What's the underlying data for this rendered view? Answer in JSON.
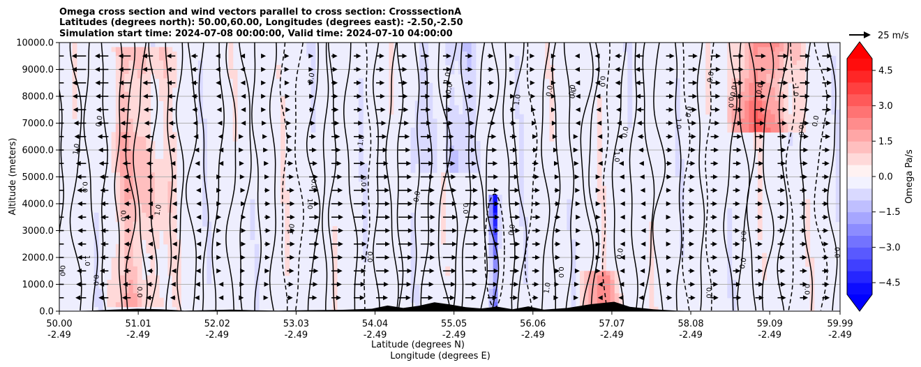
{
  "chart_data": {
    "type": "heatmap",
    "title_lines": [
      "Omega cross section and wind vectors parallel to cross section: CrosssectionA",
      "Latitudes (degrees north): 50.00,60.00, Longitudes (degrees east): -2.50,-2.50",
      "Simulation start time: 2024-07-08 00:00:00, Valid time: 2024-07-10 04:00:00"
    ],
    "ylabel": "Altitude (meters)",
    "xlabel_lines": [
      "Latitude (degrees N)",
      "Longitude (degrees E)"
    ],
    "ylim": [
      0,
      10000
    ],
    "xlim": [
      50.0,
      59.99
    ],
    "yticks": [
      0,
      1000,
      2000,
      3000,
      4000,
      5000,
      6000,
      7000,
      8000,
      9000,
      10000
    ],
    "ytick_labels": [
      "0.0",
      "1000.0",
      "2000.0",
      "3000.0",
      "4000.0",
      "5000.0",
      "6000.0",
      "7000.0",
      "8000.0",
      "9000.0",
      "10000.0"
    ],
    "xticks": [
      50.0,
      51.01,
      52.02,
      53.03,
      54.04,
      55.05,
      56.06,
      57.07,
      58.08,
      59.09,
      59.99
    ],
    "xtick_lat_labels": [
      "50.00",
      "51.01",
      "52.02",
      "53.03",
      "54.04",
      "55.05",
      "56.06",
      "57.07",
      "58.08",
      "59.09",
      "59.99"
    ],
    "xtick_lon_labels": [
      "-2.49",
      "-2.49",
      "-2.49",
      "-2.49",
      "-2.49",
      "-2.49",
      "-2.49",
      "-2.49",
      "-2.49",
      "-2.49",
      "-2.49"
    ],
    "grid": true,
    "colorbar": {
      "label": "Omega Pa/s",
      "vmin": -5.0,
      "vmax": 5.0,
      "extend": "both",
      "ticks": [
        -4.5,
        -3.0,
        -1.5,
        0.0,
        1.5,
        3.0,
        4.5
      ],
      "tick_labels": [
        "−4.5",
        "−3.0",
        "−1.5",
        "0.0",
        "1.5",
        "3.0",
        "4.5"
      ],
      "levels": [
        -5.0,
        -4.5,
        -4.0,
        -3.5,
        -3.0,
        -2.5,
        -2.0,
        -1.5,
        -1.0,
        -0.5,
        0.0,
        0.5,
        1.0,
        1.5,
        2.0,
        2.5,
        3.0,
        3.5,
        4.0,
        4.5,
        5.0
      ]
    },
    "quiver_key_label": "25 m/s",
    "features": [
      {
        "kind": "strong_ascent_column",
        "lat_range": [
          55.52,
          55.62
        ],
        "alt_range": [
          400,
          4100
        ],
        "omega": -5.0
      },
      {
        "kind": "ascent_band",
        "lat_range": [
          54.6,
          55.3
        ],
        "alt_range": [
          5500,
          10000
        ],
        "omega": -1.0
      },
      {
        "kind": "descent_band",
        "lat_range": [
          50.7,
          51.4
        ],
        "alt_range": [
          500,
          9500
        ],
        "omega": 1.5
      },
      {
        "kind": "descent_band",
        "lat_range": [
          58.6,
          59.4
        ],
        "alt_range": [
          7000,
          10000
        ],
        "omega": 3.0
      },
      {
        "kind": "descent_band",
        "lat_range": [
          56.7,
          57.2
        ],
        "alt_range": [
          0,
          1200
        ],
        "omega": 2.0
      }
    ],
    "contour_labels": [
      "0.0",
      "-1.0",
      "1.0",
      "-2.0",
      "-3.0"
    ],
    "terrain": [
      [
        50.0,
        0
      ],
      [
        50.4,
        20
      ],
      [
        50.7,
        60
      ],
      [
        51.0,
        90
      ],
      [
        51.3,
        70
      ],
      [
        51.6,
        20
      ],
      [
        51.9,
        40
      ],
      [
        52.2,
        60
      ],
      [
        52.5,
        30
      ],
      [
        52.8,
        20
      ],
      [
        53.2,
        40
      ],
      [
        53.6,
        50
      ],
      [
        54.0,
        90
      ],
      [
        54.2,
        210
      ],
      [
        54.4,
        120
      ],
      [
        54.6,
        200
      ],
      [
        54.8,
        330
      ],
      [
        55.0,
        250
      ],
      [
        55.2,
        150
      ],
      [
        55.4,
        100
      ],
      [
        55.6,
        170
      ],
      [
        55.8,
        70
      ],
      [
        56.0,
        180
      ],
      [
        56.2,
        60
      ],
      [
        56.5,
        120
      ],
      [
        56.8,
        260
      ],
      [
        57.1,
        350
      ],
      [
        57.3,
        160
      ],
      [
        57.6,
        70
      ],
      [
        57.9,
        20
      ],
      [
        58.3,
        0
      ],
      [
        59.99,
        0
      ]
    ]
  }
}
